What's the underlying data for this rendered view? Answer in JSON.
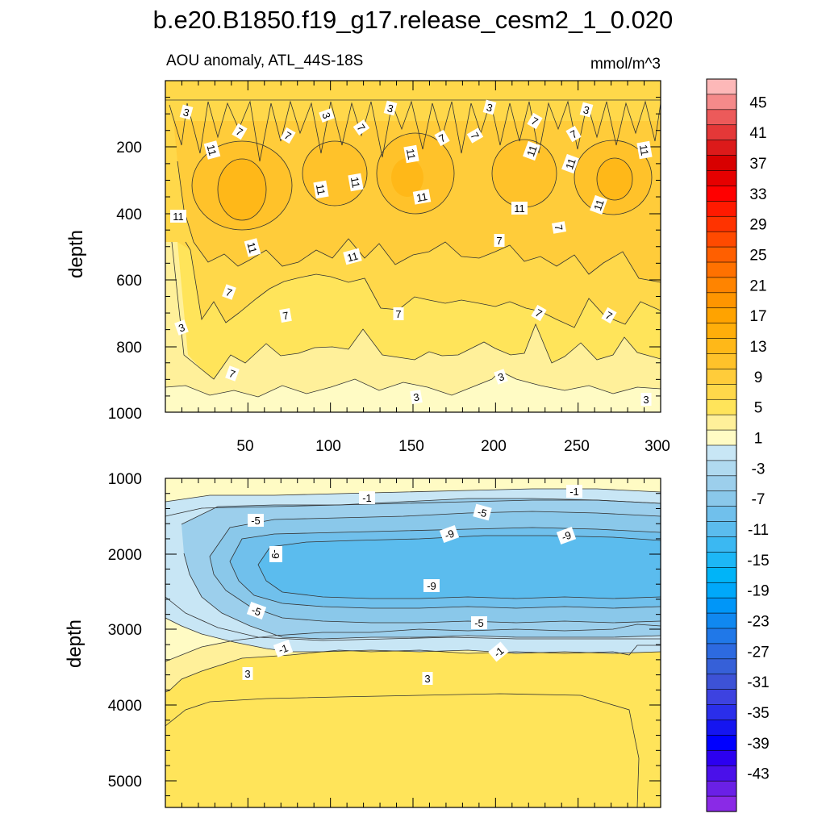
{
  "chart_data": {
    "type": "contour",
    "title": "b.e20.B1850.f19_g17.release_cesm2_1_0.020",
    "subtitle": "AOU anomaly, ATL_44S-18S",
    "units": "mmol/m^3",
    "colorbar": {
      "levels": [
        47,
        45,
        43,
        41,
        39,
        37,
        35,
        33,
        31,
        29,
        27,
        25,
        23,
        21,
        19,
        17,
        15,
        13,
        11,
        9,
        7,
        5,
        3,
        1,
        -1,
        -3,
        -5,
        -7,
        -9,
        -11,
        -13,
        -15,
        -17,
        -19,
        -21,
        -23,
        -25,
        -27,
        -29,
        -31,
        -33,
        -35,
        -37,
        -39,
        -41,
        -43,
        -45,
        -47
      ],
      "colors": [
        "#fdb8b8",
        "#f58a8a",
        "#ec5a5a",
        "#e43838",
        "#dc1a1a",
        "#d80000",
        "#e60000",
        "#ff0000",
        "#ff1a00",
        "#ff3300",
        "#ff4a00",
        "#ff5f00",
        "#ff7100",
        "#ff8400",
        "#ff9500",
        "#ffa300",
        "#ffae0a",
        "#ffb818",
        "#ffc22a",
        "#ffcc3a",
        "#ffd84a",
        "#ffe45a",
        "#fff09a",
        "#fffbc4",
        "#c8e6f5",
        "#b0daf0",
        "#9ccfec",
        "#8ac8ea",
        "#70c0ec",
        "#5bbcee",
        "#3bb8f2",
        "#1db7f6",
        "#00b4f8",
        "#00a8fa",
        "#0096f8",
        "#1088f0",
        "#2078e8",
        "#2d6ae0",
        "#3660d8",
        "#3d52d6",
        "#3d42e0",
        "#2a2eea",
        "#1515f0",
        "#0000ff",
        "#2c00f0",
        "#4a10ea",
        "#6a20e6",
        "#8a2ae6"
      ],
      "tick_labels": [
        "45",
        "41",
        "37",
        "33",
        "29",
        "25",
        "21",
        "17",
        "13",
        "9",
        "5",
        "1",
        "-3",
        "-7",
        "-11",
        "-15",
        "-19",
        "-23",
        "-27",
        "-31",
        "-35",
        "-39",
        "-43"
      ]
    },
    "panels": [
      {
        "name": "upper-ocean",
        "ylabel": "depth",
        "xlabel": "",
        "xlim": [
          0,
          300
        ],
        "ylim": [
          1000,
          0
        ],
        "xticks": [
          "50",
          "100",
          "150",
          "200",
          "250",
          "300"
        ],
        "yticks": [
          "200",
          "400",
          "600",
          "800",
          "1000"
        ],
        "fill_levels": [
          1,
          3,
          5,
          7,
          9,
          11,
          13
        ],
        "contour_labels": [
          "3",
          "3",
          "3",
          "3",
          "3",
          "3",
          "7",
          "7",
          "7",
          "7",
          "7",
          "7",
          "7",
          "11",
          "11",
          "11",
          "11",
          "11",
          "11",
          "11",
          "11",
          "11",
          "7",
          "11",
          "11",
          "11",
          "11",
          "7",
          "7",
          "7",
          "7",
          "7",
          "7",
          "7",
          "3",
          "3",
          "3",
          "3",
          "3"
        ]
      },
      {
        "name": "deep-ocean",
        "ylabel": "depth",
        "xlabel": "",
        "xlim": [
          0,
          300
        ],
        "ylim": [
          5350,
          1000
        ],
        "xticks": [],
        "yticks": [
          "1000",
          "2000",
          "3000",
          "4000",
          "5000"
        ],
        "fill_levels": [
          -11,
          -9,
          -7,
          -5,
          -3,
          -1,
          1,
          3,
          5
        ],
        "contour_labels": [
          "-1",
          "-1",
          "-5",
          "-5",
          "-9",
          "-9",
          "-9",
          "-9",
          "-5",
          "-5",
          "-1",
          "-1",
          "3",
          "3"
        ]
      }
    ]
  }
}
